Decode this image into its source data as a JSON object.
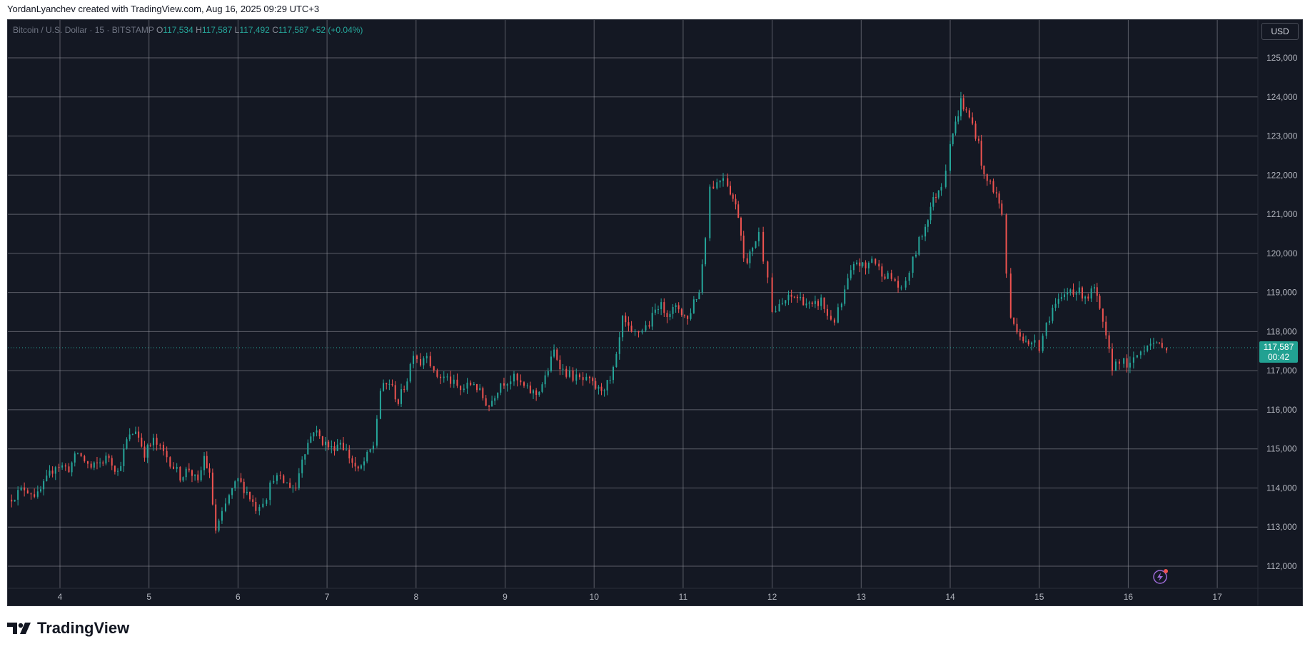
{
  "attribution": "YordanLyanchev created with TradingView.com, Aug 16, 2025 09:29 UTC+3",
  "currency_button": "USD",
  "legend": {
    "symbol": "Bitcoin / U.S. Dollar · 15 · BITSTAMP",
    "open_key": "O",
    "open": "117,534",
    "high_key": "H",
    "high": "117,587",
    "low_key": "L",
    "low": "117,492",
    "close_key": "C",
    "close": "117,587",
    "change": "+52 (+0.04%)"
  },
  "price_tag": {
    "price": "117,587",
    "countdown": "00:42"
  },
  "footer": {
    "logo_text": "TradingView"
  },
  "colors": {
    "up": "#26a69a",
    "down": "#ef5350",
    "background": "#141823",
    "grid": "#9598a1",
    "price_line": "#26a69a"
  },
  "icons": [
    "tradingview-logo-icon",
    "lightning-sparkle-icon"
  ],
  "chart_data": {
    "type": "candlestick",
    "title": "Bitcoin / U.S. Dollar · 15 · BITSTAMP",
    "xlabel": "",
    "ylabel": "",
    "x_ticks": [
      "4",
      "5",
      "6",
      "7",
      "8",
      "9",
      "10",
      "11",
      "12",
      "13",
      "14",
      "15",
      "16",
      "17"
    ],
    "y_ticks": [
      "112,000",
      "113,000",
      "114,000",
      "115,000",
      "116,000",
      "117,000",
      "118,000",
      "119,000",
      "120,000",
      "121,000",
      "122,000",
      "123,000",
      "124,000",
      "125,000"
    ],
    "x_range_days": [
      3.4,
      17.7
    ],
    "ylim": [
      111600,
      125400
    ],
    "current_price": 117587,
    "grid": true,
    "series_path": [
      {
        "d": 3.42,
        "p": 113700
      },
      {
        "d": 3.6,
        "p": 114000
      },
      {
        "d": 3.75,
        "p": 113800
      },
      {
        "d": 3.95,
        "p": 114600
      },
      {
        "d": 4.1,
        "p": 114500
      },
      {
        "d": 4.2,
        "p": 114900
      },
      {
        "d": 4.35,
        "p": 114500
      },
      {
        "d": 4.55,
        "p": 114800
      },
      {
        "d": 4.65,
        "p": 114400
      },
      {
        "d": 4.75,
        "p": 115200
      },
      {
        "d": 4.85,
        "p": 115500
      },
      {
        "d": 4.95,
        "p": 114900
      },
      {
        "d": 5.05,
        "p": 115200
      },
      {
        "d": 5.2,
        "p": 114800
      },
      {
        "d": 5.35,
        "p": 114300
      },
      {
        "d": 5.45,
        "p": 114500
      },
      {
        "d": 5.55,
        "p": 114100
      },
      {
        "d": 5.62,
        "p": 114800
      },
      {
        "d": 5.68,
        "p": 114300
      },
      {
        "d": 5.75,
        "p": 112900
      },
      {
        "d": 5.82,
        "p": 113300
      },
      {
        "d": 5.9,
        "p": 113800
      },
      {
        "d": 6.0,
        "p": 114200
      },
      {
        "d": 6.1,
        "p": 113900
      },
      {
        "d": 6.2,
        "p": 113500
      },
      {
        "d": 6.32,
        "p": 113800
      },
      {
        "d": 6.4,
        "p": 114300
      },
      {
        "d": 6.55,
        "p": 114100
      },
      {
        "d": 6.65,
        "p": 114000
      },
      {
        "d": 6.72,
        "p": 114800
      },
      {
        "d": 6.85,
        "p": 115500
      },
      {
        "d": 6.95,
        "p": 115200
      },
      {
        "d": 7.05,
        "p": 115000
      },
      {
        "d": 7.15,
        "p": 115200
      },
      {
        "d": 7.25,
        "p": 114800
      },
      {
        "d": 7.35,
        "p": 114400
      },
      {
        "d": 7.45,
        "p": 114800
      },
      {
        "d": 7.52,
        "p": 115100
      },
      {
        "d": 7.6,
        "p": 116500
      },
      {
        "d": 7.7,
        "p": 116700
      },
      {
        "d": 7.8,
        "p": 116200
      },
      {
        "d": 7.9,
        "p": 116800
      },
      {
        "d": 7.97,
        "p": 117500
      },
      {
        "d": 8.05,
        "p": 117200
      },
      {
        "d": 8.12,
        "p": 117500
      },
      {
        "d": 8.2,
        "p": 116900
      },
      {
        "d": 8.35,
        "p": 116800
      },
      {
        "d": 8.5,
        "p": 116500
      },
      {
        "d": 8.65,
        "p": 116700
      },
      {
        "d": 8.75,
        "p": 116300
      },
      {
        "d": 8.82,
        "p": 116100
      },
      {
        "d": 8.95,
        "p": 116700
      },
      {
        "d": 9.1,
        "p": 116800
      },
      {
        "d": 9.25,
        "p": 116500
      },
      {
        "d": 9.35,
        "p": 116400
      },
      {
        "d": 9.45,
        "p": 116800
      },
      {
        "d": 9.55,
        "p": 117500
      },
      {
        "d": 9.65,
        "p": 117000
      },
      {
        "d": 9.8,
        "p": 116800
      },
      {
        "d": 9.95,
        "p": 116700
      },
      {
        "d": 10.05,
        "p": 116500
      },
      {
        "d": 10.18,
        "p": 116700
      },
      {
        "d": 10.25,
        "p": 117300
      },
      {
        "d": 10.32,
        "p": 118300
      },
      {
        "d": 10.42,
        "p": 117900
      },
      {
        "d": 10.5,
        "p": 118000
      },
      {
        "d": 10.62,
        "p": 118200
      },
      {
        "d": 10.72,
        "p": 118700
      },
      {
        "d": 10.82,
        "p": 118500
      },
      {
        "d": 10.95,
        "p": 118600
      },
      {
        "d": 11.05,
        "p": 118300
      },
      {
        "d": 11.12,
        "p": 118800
      },
      {
        "d": 11.18,
        "p": 119000
      },
      {
        "d": 11.25,
        "p": 120500
      },
      {
        "d": 11.3,
        "p": 121700
      },
      {
        "d": 11.38,
        "p": 121800
      },
      {
        "d": 11.45,
        "p": 122000
      },
      {
        "d": 11.5,
        "p": 121800
      },
      {
        "d": 11.56,
        "p": 121400
      },
      {
        "d": 11.62,
        "p": 121000
      },
      {
        "d": 11.68,
        "p": 120000
      },
      {
        "d": 11.72,
        "p": 119700
      },
      {
        "d": 11.78,
        "p": 120200
      },
      {
        "d": 11.85,
        "p": 120500
      },
      {
        "d": 11.9,
        "p": 119900
      },
      {
        "d": 11.95,
        "p": 119500
      },
      {
        "d": 12.0,
        "p": 118500
      },
      {
        "d": 12.08,
        "p": 118600
      },
      {
        "d": 12.15,
        "p": 118800
      },
      {
        "d": 12.25,
        "p": 118900
      },
      {
        "d": 12.35,
        "p": 118800
      },
      {
        "d": 12.45,
        "p": 118600
      },
      {
        "d": 12.55,
        "p": 118800
      },
      {
        "d": 12.62,
        "p": 118400
      },
      {
        "d": 12.7,
        "p": 118300
      },
      {
        "d": 12.78,
        "p": 118700
      },
      {
        "d": 12.85,
        "p": 119300
      },
      {
        "d": 12.95,
        "p": 119800
      },
      {
        "d": 13.05,
        "p": 119600
      },
      {
        "d": 13.12,
        "p": 119900
      },
      {
        "d": 13.2,
        "p": 119600
      },
      {
        "d": 13.3,
        "p": 119400
      },
      {
        "d": 13.38,
        "p": 119300
      },
      {
        "d": 13.45,
        "p": 119000
      },
      {
        "d": 13.5,
        "p": 119300
      },
      {
        "d": 13.58,
        "p": 119800
      },
      {
        "d": 13.65,
        "p": 120300
      },
      {
        "d": 13.72,
        "p": 120700
      },
      {
        "d": 13.78,
        "p": 121200
      },
      {
        "d": 13.84,
        "p": 121500
      },
      {
        "d": 13.9,
        "p": 121800
      },
      {
        "d": 13.95,
        "p": 122200
      },
      {
        "d": 14.0,
        "p": 122900
      },
      {
        "d": 14.06,
        "p": 123300
      },
      {
        "d": 14.12,
        "p": 123900
      },
      {
        "d": 14.18,
        "p": 123600
      },
      {
        "d": 14.25,
        "p": 123300
      },
      {
        "d": 14.32,
        "p": 122800
      },
      {
        "d": 14.38,
        "p": 121900
      },
      {
        "d": 14.45,
        "p": 121800
      },
      {
        "d": 14.52,
        "p": 121500
      },
      {
        "d": 14.58,
        "p": 121000
      },
      {
        "d": 14.63,
        "p": 119500
      },
      {
        "d": 14.68,
        "p": 118300
      },
      {
        "d": 14.75,
        "p": 118100
      },
      {
        "d": 14.82,
        "p": 117800
      },
      {
        "d": 14.88,
        "p": 117600
      },
      {
        "d": 14.95,
        "p": 117900
      },
      {
        "d": 15.0,
        "p": 117600
      },
      {
        "d": 15.08,
        "p": 118200
      },
      {
        "d": 15.15,
        "p": 118600
      },
      {
        "d": 15.25,
        "p": 118800
      },
      {
        "d": 15.35,
        "p": 119100
      },
      {
        "d": 15.45,
        "p": 119000
      },
      {
        "d": 15.55,
        "p": 118900
      },
      {
        "d": 15.62,
        "p": 119100
      },
      {
        "d": 15.68,
        "p": 118500
      },
      {
        "d": 15.75,
        "p": 117800
      },
      {
        "d": 15.82,
        "p": 117100
      },
      {
        "d": 15.9,
        "p": 117300
      },
      {
        "d": 15.95,
        "p": 117200
      },
      {
        "d": 16.02,
        "p": 117100
      },
      {
        "d": 16.1,
        "p": 117400
      },
      {
        "d": 16.18,
        "p": 117600
      },
      {
        "d": 16.25,
        "p": 117800
      },
      {
        "d": 16.32,
        "p": 117600
      },
      {
        "d": 16.38,
        "p": 117700
      },
      {
        "d": 16.43,
        "p": 117587
      }
    ]
  }
}
